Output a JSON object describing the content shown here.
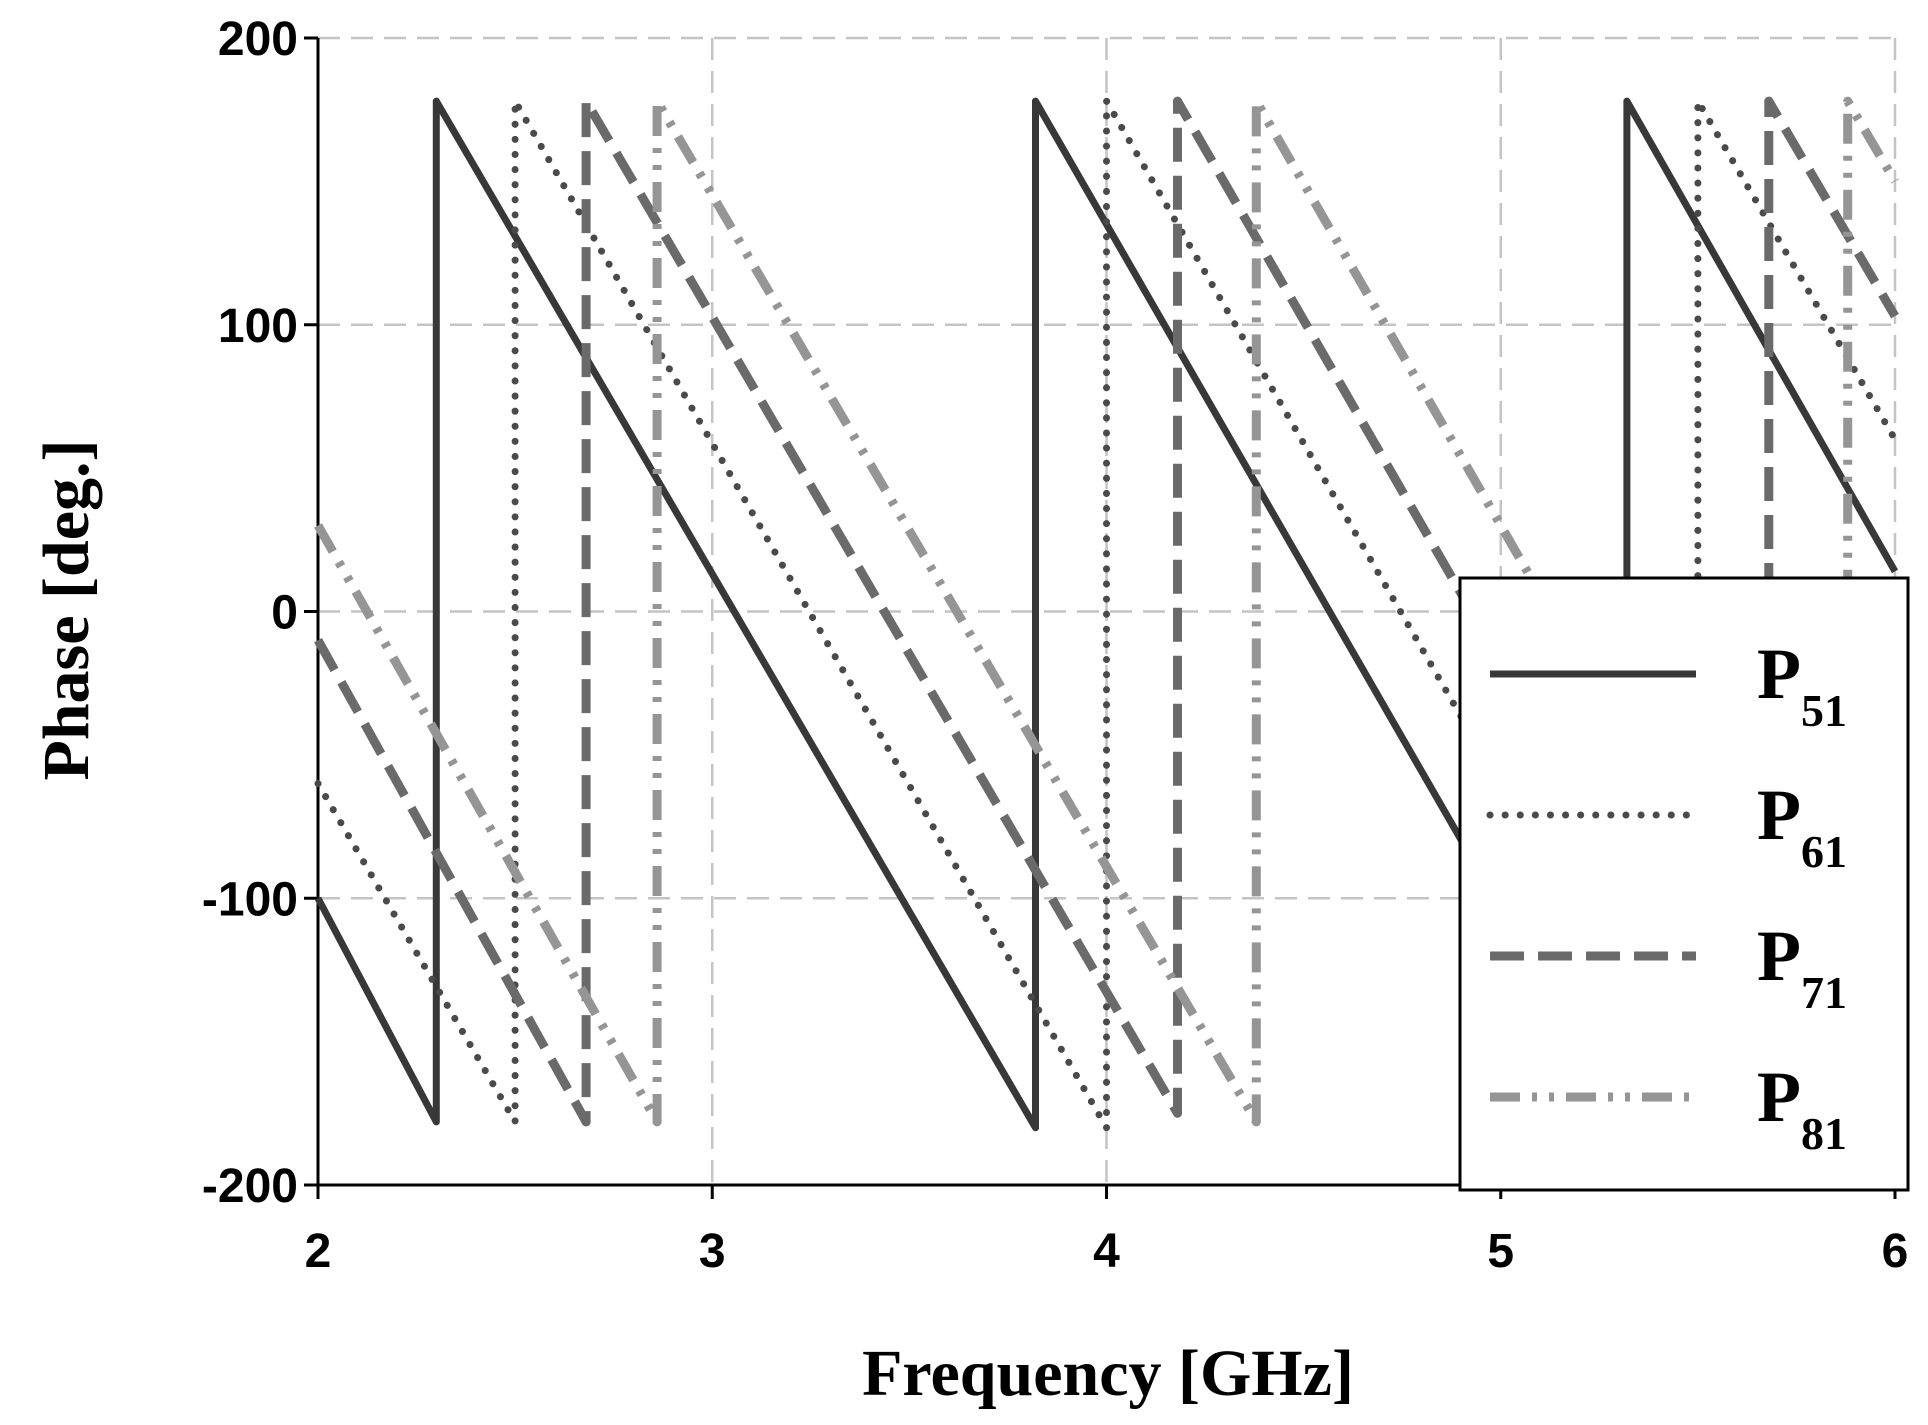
{
  "chart_data": {
    "type": "line",
    "xlabel": "Frequency [GHz]",
    "ylabel": "Phase [deg.]",
    "xlim": [
      2,
      6
    ],
    "ylim": [
      -200,
      200
    ],
    "xticks": [
      2,
      3,
      4,
      5,
      6
    ],
    "yticks": [
      -200,
      -100,
      0,
      100,
      200
    ],
    "x_tick_labels": [
      "2",
      "3",
      "4",
      "5",
      "6"
    ],
    "y_tick_labels": [
      "-200",
      "-100",
      "0",
      "100",
      "200"
    ],
    "grid": true,
    "legend_position": "bottom-right",
    "series": [
      {
        "name": "P",
        "subscript": "51",
        "style": "solid",
        "color": "#383838",
        "points": [
          [
            2.0,
            -100
          ],
          [
            2.3,
            -178
          ],
          [
            2.3,
            178
          ],
          [
            3.82,
            -180
          ],
          [
            3.82,
            178
          ],
          [
            5.32,
            -180
          ],
          [
            5.32,
            178
          ],
          [
            6.0,
            14
          ]
        ]
      },
      {
        "name": "P",
        "subscript": "61",
        "style": "dotted",
        "color": "#4a4a4a",
        "points": [
          [
            2.0,
            -60
          ],
          [
            2.5,
            -178
          ],
          [
            2.5,
            178
          ],
          [
            4.0,
            -180
          ],
          [
            4.0,
            178
          ],
          [
            5.5,
            -180
          ],
          [
            5.5,
            178
          ],
          [
            6.0,
            60
          ]
        ]
      },
      {
        "name": "P",
        "subscript": "71",
        "style": "dashed",
        "color": "#6a6a6a",
        "points": [
          [
            2.0,
            -10
          ],
          [
            2.68,
            -178
          ],
          [
            2.68,
            178
          ],
          [
            4.18,
            -175
          ],
          [
            4.18,
            178
          ],
          [
            5.68,
            -180
          ],
          [
            5.68,
            178
          ],
          [
            6.0,
            103
          ]
        ]
      },
      {
        "name": "P",
        "subscript": "81",
        "style": "dash-dot-dot",
        "color": "#959595",
        "points": [
          [
            2.0,
            30
          ],
          [
            2.86,
            -178
          ],
          [
            2.86,
            178
          ],
          [
            4.38,
            -178
          ],
          [
            4.38,
            178
          ],
          [
            5.88,
            -180
          ],
          [
            5.88,
            178
          ],
          [
            6.0,
            150
          ]
        ]
      }
    ]
  }
}
